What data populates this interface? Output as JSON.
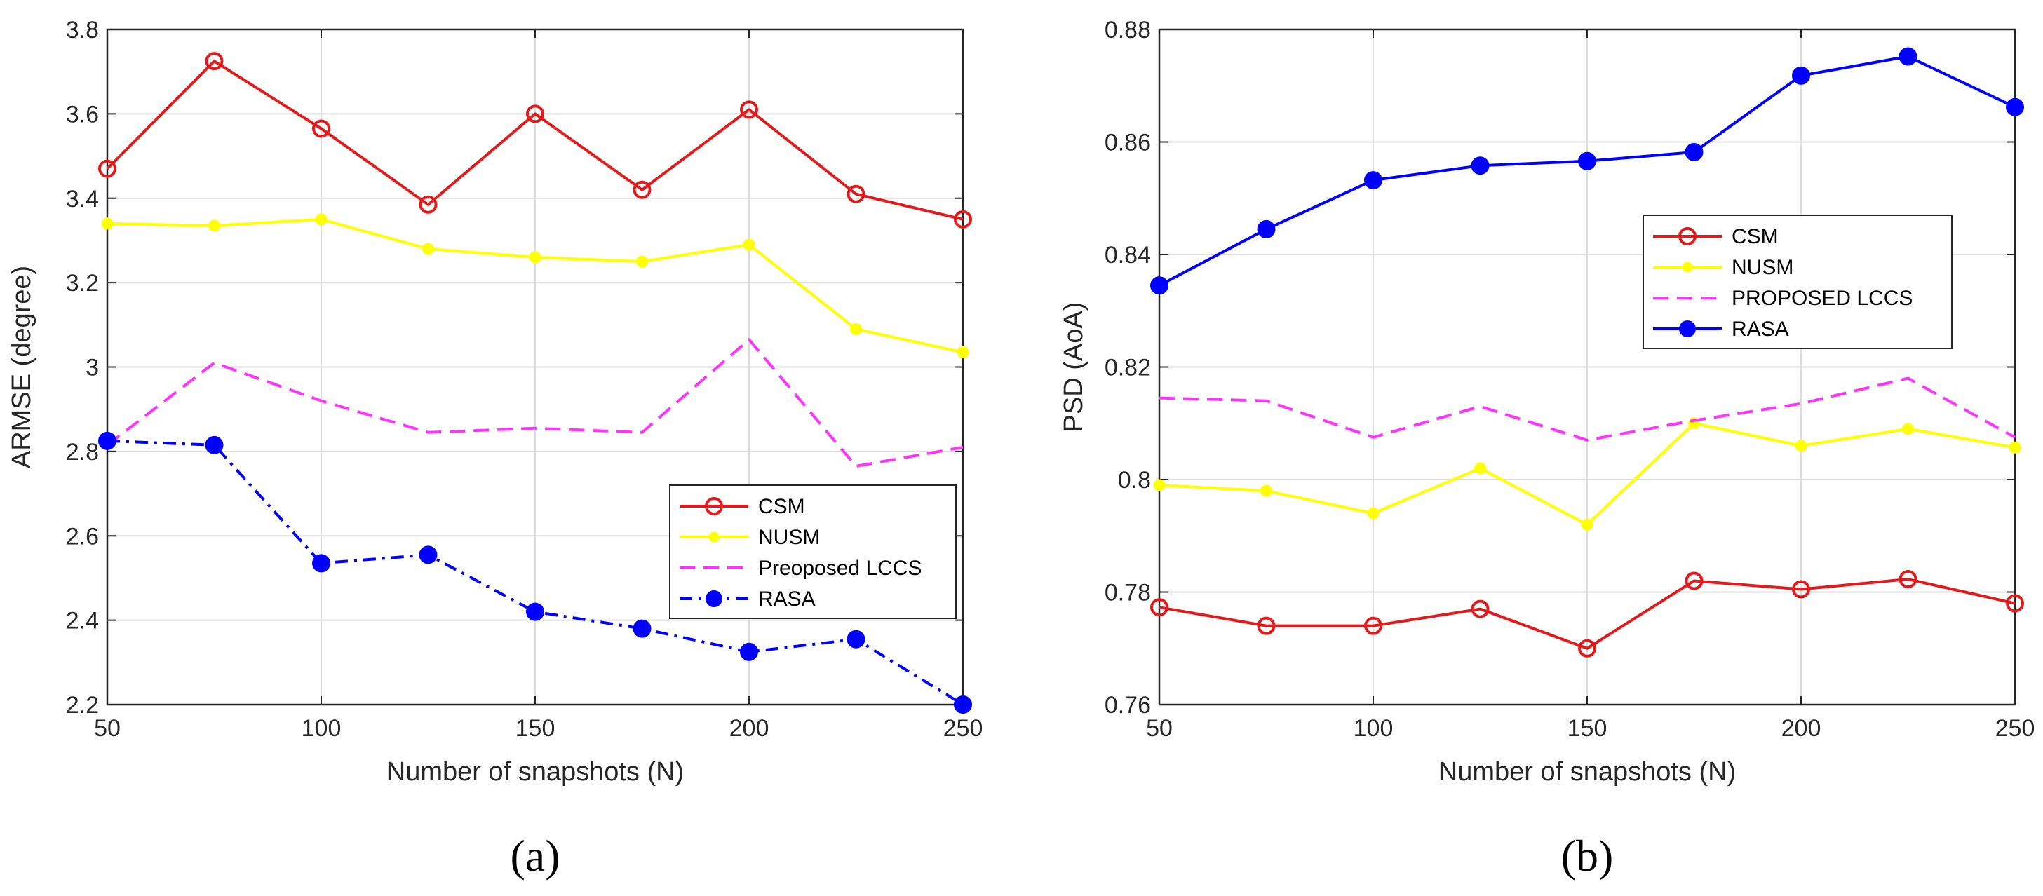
{
  "chart_data": [
    {
      "type": "line",
      "caption": "(a)",
      "xlabel": "Number of snapshots (N)",
      "ylabel": "ARMSE (degree)",
      "xlim": [
        50,
        250
      ],
      "ylim": [
        2.2,
        3.8
      ],
      "xticks": [
        50,
        100,
        150,
        200,
        250
      ],
      "yticks": [
        2.2,
        2.4,
        2.6,
        2.8,
        3.0,
        3.2,
        3.4,
        3.6,
        3.8
      ],
      "ytick_labels": [
        "2.2",
        "2.4",
        "2.6",
        "2.8",
        "3",
        "3.2",
        "3.4",
        "3.6",
        "3.8"
      ],
      "grid": true,
      "legend_position": "lower-right",
      "x": [
        50,
        75,
        100,
        125,
        150,
        175,
        200,
        225,
        250
      ],
      "series": [
        {
          "name": "CSM",
          "color": "#e31a1c",
          "style": "solid",
          "marker": "open-circle",
          "values": [
            3.47,
            3.725,
            3.565,
            3.385,
            3.6,
            3.42,
            3.61,
            3.41,
            3.35
          ]
        },
        {
          "name": "NUSM",
          "color": "#ffff00",
          "style": "solid",
          "marker": "dot",
          "values": [
            3.34,
            3.335,
            3.35,
            3.28,
            3.26,
            3.25,
            3.29,
            3.09,
            3.035
          ]
        },
        {
          "name": "Preoposed LCCS",
          "color": "#ff33ff",
          "style": "dashed",
          "marker": "none",
          "values": [
            2.815,
            3.01,
            2.92,
            2.845,
            2.855,
            2.845,
            3.065,
            2.765,
            2.81
          ]
        },
        {
          "name": "RASA",
          "color": "#0000ff",
          "style": "dashdot",
          "marker": "filled-circle",
          "values": [
            2.825,
            2.815,
            2.535,
            2.555,
            2.42,
            2.38,
            2.325,
            2.355,
            2.2
          ]
        }
      ]
    },
    {
      "type": "line",
      "caption": "(b)",
      "xlabel": "Number of snapshots (N)",
      "ylabel": "PSD (AoA)",
      "xlim": [
        50,
        250
      ],
      "ylim": [
        0.76,
        0.88
      ],
      "xticks": [
        50,
        100,
        150,
        200,
        250
      ],
      "yticks": [
        0.76,
        0.78,
        0.8,
        0.82,
        0.84,
        0.86,
        0.88
      ],
      "ytick_labels": [
        "0.76",
        "0.78",
        "0.8",
        "0.82",
        "0.84",
        "0.86",
        "0.88"
      ],
      "grid": true,
      "legend_position": "center-right",
      "x": [
        50,
        75,
        100,
        125,
        150,
        175,
        200,
        225,
        250
      ],
      "series": [
        {
          "name": "CSM",
          "color": "#e31a1c",
          "style": "solid",
          "marker": "open-circle",
          "values": [
            0.7773,
            0.774,
            0.774,
            0.777,
            0.77,
            0.782,
            0.7805,
            0.7823,
            0.778
          ]
        },
        {
          "name": "NUSM",
          "color": "#ffff00",
          "style": "solid",
          "marker": "dot",
          "values": [
            0.799,
            0.798,
            0.794,
            0.802,
            0.792,
            0.81,
            0.806,
            0.809,
            0.8057
          ]
        },
        {
          "name": "PROPOSED LCCS",
          "color": "#ff33ff",
          "style": "dashed",
          "marker": "none",
          "values": [
            0.8145,
            0.814,
            0.8075,
            0.813,
            0.807,
            0.8105,
            0.8135,
            0.818,
            0.8075
          ]
        },
        {
          "name": "RASA",
          "color": "#0000ff",
          "style": "solid",
          "marker": "filled-circle",
          "values": [
            0.8345,
            0.8445,
            0.8532,
            0.8558,
            0.8566,
            0.8582,
            0.8718,
            0.8752,
            0.8662
          ]
        }
      ]
    }
  ]
}
